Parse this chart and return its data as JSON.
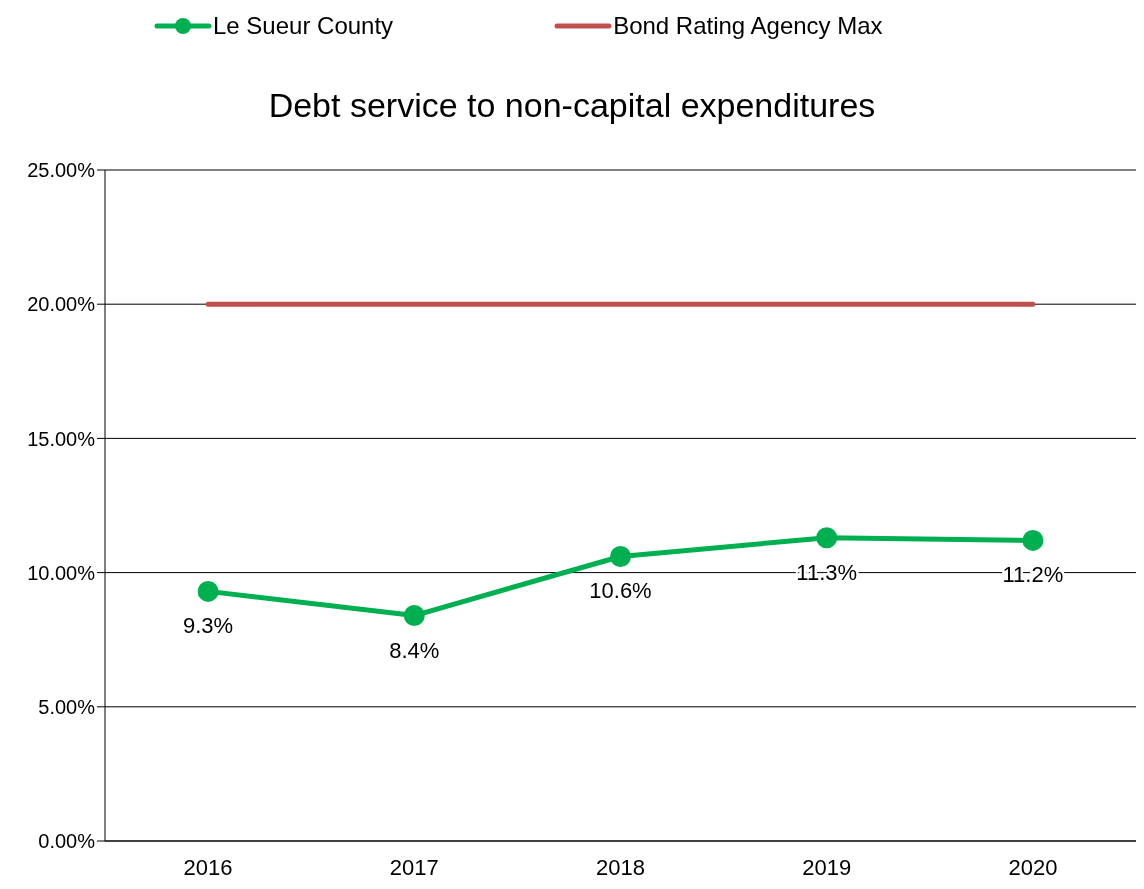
{
  "chart_data": {
    "type": "line",
    "title": "Debt service to non-capital expenditures",
    "categories": [
      "2016",
      "2017",
      "2018",
      "2019",
      "2020"
    ],
    "series": [
      {
        "name": "Le Sueur County",
        "color": "#00b050",
        "values": [
          9.3,
          8.4,
          10.6,
          11.3,
          11.2
        ],
        "value_labels": [
          "9.3%",
          "8.4%",
          "10.6%",
          "11.3%",
          "11.2%"
        ],
        "marker": "circle"
      },
      {
        "name": "Bond Rating Agency Max",
        "color": "#c0504d",
        "values": [
          20,
          20,
          20,
          20,
          20
        ],
        "marker": "none"
      }
    ],
    "ylim": [
      0,
      25
    ],
    "yticks": [
      {
        "value": 0,
        "label": "0.00%"
      },
      {
        "value": 5,
        "label": "5.00%"
      },
      {
        "value": 10,
        "label": "10.00%"
      },
      {
        "value": 15,
        "label": "15.00%"
      },
      {
        "value": 20,
        "label": "20.00%"
      },
      {
        "value": 25,
        "label": "25.00%"
      }
    ],
    "grid": "y",
    "legend": "top",
    "line_style": "solid"
  }
}
